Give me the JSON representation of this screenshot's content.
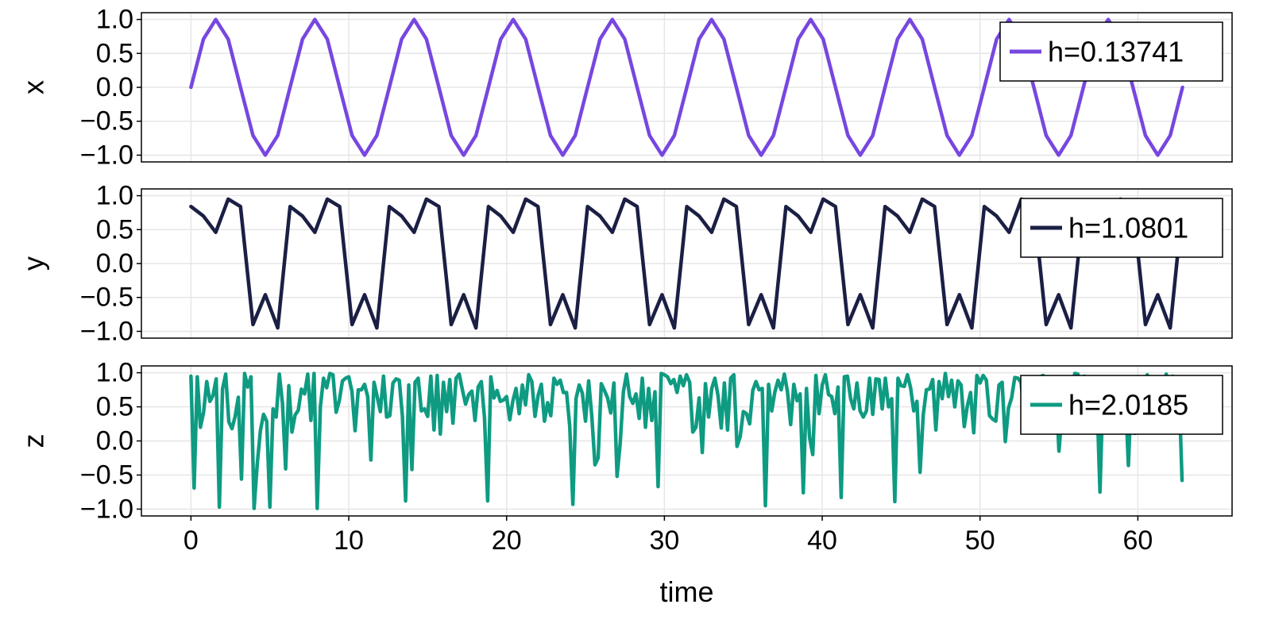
{
  "chart_data": [
    {
      "type": "line",
      "ylabel": "x",
      "xlim": [
        -3.14,
        65.97
      ],
      "ylim": [
        -1.1,
        1.1
      ],
      "yticks": [
        1.0,
        0.5,
        0.0,
        -0.5,
        -1.0
      ],
      "yticklabels": [
        "1.0",
        "0.5",
        "0.0",
        "−0.5",
        "−1.0"
      ],
      "xticks": [
        0,
        10,
        20,
        30,
        40,
        50,
        60
      ],
      "xticklabels": [],
      "grid": true,
      "legend_position": "top-right",
      "series": [
        {
          "name": "h=0.13741",
          "color": "#7747e0",
          "x": [
            0.0,
            0.79,
            1.57,
            2.36,
            3.14,
            3.93,
            4.71,
            5.5,
            6.28,
            7.07,
            7.85,
            8.64,
            9.42,
            10.21,
            11.0,
            11.78,
            12.57,
            13.35,
            14.14,
            14.92,
            15.71,
            16.49,
            17.28,
            18.06,
            18.85,
            19.63,
            20.42,
            21.21,
            21.99,
            22.78,
            23.56,
            24.35,
            25.13,
            25.92,
            26.7,
            27.49,
            28.27,
            29.06,
            29.85,
            30.63,
            31.42,
            32.2,
            32.99,
            33.77,
            34.56,
            35.34,
            36.13,
            36.91,
            37.7,
            38.48,
            39.27,
            40.06,
            40.84,
            41.63,
            42.41,
            43.2,
            43.98,
            44.77,
            45.55,
            46.34,
            47.12,
            47.91,
            48.69,
            49.48,
            50.27,
            51.05,
            51.84,
            52.62,
            53.41,
            54.19,
            54.98,
            55.76,
            56.55,
            57.33,
            58.12,
            58.9,
            59.69,
            60.48,
            61.26,
            62.05,
            62.83
          ],
          "y": [
            0.0,
            0.71,
            1.0,
            0.71,
            0.0,
            -0.71,
            -1.0,
            -0.71,
            0.0,
            0.71,
            1.0,
            0.71,
            0.0,
            -0.71,
            -1.0,
            -0.71,
            0.0,
            0.71,
            1.0,
            0.71,
            0.0,
            -0.71,
            -1.0,
            -0.71,
            0.0,
            0.71,
            1.0,
            0.71,
            0.0,
            -0.71,
            -1.0,
            -0.71,
            0.0,
            0.71,
            1.0,
            0.71,
            0.0,
            -0.71,
            -1.0,
            -0.71,
            0.0,
            0.71,
            1.0,
            0.71,
            0.0,
            -0.71,
            -1.0,
            -0.71,
            0.0,
            0.71,
            1.0,
            0.71,
            0.0,
            -0.71,
            -1.0,
            -0.71,
            0.0,
            0.71,
            1.0,
            0.71,
            0.0,
            -0.71,
            -1.0,
            -0.71,
            0.0,
            0.71,
            1.0,
            0.71,
            0.0,
            -0.71,
            -1.0,
            -0.71,
            0.0,
            0.71,
            1.0,
            0.71,
            0.0,
            -0.71,
            -1.0,
            -0.71,
            0.0
          ]
        }
      ]
    },
    {
      "type": "line",
      "ylabel": "y",
      "xlim": [
        -3.14,
        65.97
      ],
      "ylim": [
        -1.1,
        1.1
      ],
      "yticks": [
        1.0,
        0.5,
        0.0,
        -0.5,
        -1.0
      ],
      "yticklabels": [
        "1.0",
        "0.5",
        "0.0",
        "−0.5",
        "−1.0"
      ],
      "xticks": [
        0,
        10,
        20,
        30,
        40,
        50,
        60
      ],
      "xticklabels": [],
      "grid": true,
      "legend_position": "top-right",
      "series": [
        {
          "name": "h=1.0801",
          "color": "#1b1f44",
          "x": [
            0.0,
            0.79,
            1.57,
            2.36,
            3.14,
            3.93,
            4.71,
            5.5,
            6.28,
            7.07,
            7.85,
            8.64,
            9.42,
            10.21,
            11.0,
            11.78,
            12.57,
            13.35,
            14.14,
            14.92,
            15.71,
            16.49,
            17.28,
            18.06,
            18.85,
            19.63,
            20.42,
            21.21,
            21.99,
            22.78,
            23.56,
            24.35,
            25.13,
            25.92,
            26.7,
            27.49,
            28.27,
            29.06,
            29.85,
            30.63,
            31.42,
            32.2,
            32.99,
            33.77,
            34.56,
            35.34,
            36.13,
            36.91,
            37.7,
            38.48,
            39.27,
            40.06,
            40.84,
            41.63,
            42.41,
            43.2,
            43.98,
            44.77,
            45.55,
            46.34,
            47.12,
            47.91,
            48.69,
            49.48,
            50.27,
            51.05,
            51.84,
            52.62,
            53.41,
            54.19,
            54.98,
            55.76,
            56.55,
            57.33,
            58.12,
            58.9,
            59.69,
            60.48,
            61.26,
            62.05,
            62.83
          ],
          "y": [
            0.84,
            0.7,
            0.46,
            0.95,
            0.84,
            -0.9,
            -0.46,
            -0.95,
            0.84,
            0.7,
            0.46,
            0.95,
            0.84,
            -0.9,
            -0.46,
            -0.95,
            0.84,
            0.7,
            0.46,
            0.95,
            0.84,
            -0.9,
            -0.46,
            -0.95,
            0.84,
            0.7,
            0.46,
            0.95,
            0.84,
            -0.9,
            -0.46,
            -0.95,
            0.84,
            0.7,
            0.46,
            0.95,
            0.84,
            -0.9,
            -0.46,
            -0.95,
            0.84,
            0.7,
            0.46,
            0.95,
            0.84,
            -0.9,
            -0.46,
            -0.95,
            0.84,
            0.7,
            0.46,
            0.95,
            0.84,
            -0.9,
            -0.46,
            -0.95,
            0.84,
            0.7,
            0.46,
            0.95,
            0.84,
            -0.9,
            -0.46,
            -0.95,
            0.84,
            0.7,
            0.46,
            0.95,
            0.84,
            -0.9,
            -0.46,
            -0.95,
            0.84,
            0.7,
            0.46,
            0.95,
            0.84,
            -0.9,
            -0.46,
            -0.95,
            0.84
          ]
        }
      ]
    },
    {
      "type": "line",
      "ylabel": "z",
      "xlabel": "time",
      "xlim": [
        -3.14,
        65.97
      ],
      "ylim": [
        -1.1,
        1.1
      ],
      "yticks": [
        1.0,
        0.5,
        0.0,
        -0.5,
        -1.0
      ],
      "yticklabels": [
        "1.0",
        "0.5",
        "0.0",
        "−0.5",
        "−1.0"
      ],
      "xticks": [
        0,
        10,
        20,
        30,
        40,
        50,
        60
      ],
      "xticklabels": [
        "0",
        "10",
        "20",
        "30",
        "40",
        "50",
        "60"
      ],
      "grid": true,
      "legend_position": "top-right",
      "series": [
        {
          "name": "h=2.0185",
          "color": "#0e9b82",
          "x": [
            0.0,
            0.2,
            0.4,
            0.6,
            0.8,
            1.0,
            1.2,
            1.4,
            1.6,
            1.8,
            2.0,
            2.2,
            2.4,
            2.6,
            2.8,
            3.0,
            3.2,
            3.4,
            3.6,
            3.8,
            4.0,
            4.2,
            4.4,
            4.6,
            4.8,
            5.0,
            5.2,
            5.4,
            5.6,
            5.8,
            6.0,
            6.2,
            6.4,
            6.6,
            6.8,
            7.0,
            7.2,
            7.4,
            7.6,
            7.8,
            8.0,
            8.2,
            8.4,
            8.6,
            8.8,
            9.0,
            9.2,
            9.4,
            9.6,
            9.8,
            10.0,
            10.2,
            10.4,
            10.6,
            10.8,
            11.0,
            11.2,
            11.4,
            11.6,
            11.8,
            12.0,
            12.2,
            12.4,
            12.6,
            12.8,
            13.0,
            13.2,
            13.4,
            13.6,
            13.8,
            14.0,
            14.2,
            14.4,
            14.6,
            14.8,
            15.0,
            15.2,
            15.4,
            15.6,
            15.8,
            16.0,
            16.2,
            16.4,
            16.6,
            16.8,
            17.0,
            17.2,
            17.4,
            17.6,
            17.8,
            18.0,
            18.2,
            18.4,
            18.6,
            18.8,
            19.0,
            19.2,
            19.4,
            19.6,
            19.8,
            20.0,
            20.2,
            20.4,
            20.6,
            20.8,
            21.0,
            21.2,
            21.4,
            21.6,
            21.8,
            22.0,
            22.2,
            22.4,
            22.6,
            22.8,
            23.0,
            23.2,
            23.4,
            23.6,
            23.8,
            24.0,
            24.2,
            24.4,
            24.6,
            24.8,
            25.0,
            25.2,
            25.4,
            25.6,
            25.8,
            26.0,
            26.2,
            26.4,
            26.6,
            26.8,
            27.0,
            27.2,
            27.4,
            27.6,
            27.8,
            28.0,
            28.2,
            28.4,
            28.6,
            28.8,
            29.0,
            29.2,
            29.4,
            29.6,
            29.8,
            30.0,
            30.2,
            30.4,
            30.6,
            30.8,
            31.0,
            31.2,
            31.4,
            31.6,
            31.8,
            32.0,
            32.2,
            32.4,
            32.6,
            32.8,
            33.0,
            33.2,
            33.4,
            33.6,
            33.8,
            34.0,
            34.2,
            34.4,
            34.6,
            34.8,
            35.0,
            35.2,
            35.4,
            35.6,
            35.8,
            36.0,
            36.2,
            36.4,
            36.6,
            36.8,
            37.0,
            37.2,
            37.4,
            37.6,
            37.8,
            38.0,
            38.2,
            38.4,
            38.6,
            38.8,
            39.0,
            39.2,
            39.4,
            39.6,
            39.8,
            40.0,
            40.2,
            40.4,
            40.6,
            40.8,
            41.0,
            41.2,
            41.4,
            41.6,
            41.8,
            42.0,
            42.2,
            42.4,
            42.6,
            42.8,
            43.0,
            43.2,
            43.4,
            43.6,
            43.8,
            44.0,
            44.2,
            44.4,
            44.6,
            44.8,
            45.0,
            45.2,
            45.4,
            45.6,
            45.8,
            46.0,
            46.2,
            46.4,
            46.6,
            46.8,
            47.0,
            47.2,
            47.4,
            47.6,
            47.8,
            48.0,
            48.2,
            48.4,
            48.6,
            48.8,
            49.0,
            49.2,
            49.4,
            49.6,
            49.8,
            50.0,
            50.2,
            50.4,
            50.6,
            50.8,
            51.0,
            51.2,
            51.4,
            51.6,
            51.8,
            52.0,
            52.2,
            52.4,
            52.6,
            52.8,
            53.0,
            53.2,
            53.4,
            53.6,
            53.8,
            54.0,
            54.2,
            54.4,
            54.6,
            54.8,
            55.0,
            55.2,
            55.4,
            55.6,
            55.8,
            56.0,
            56.2,
            56.4,
            56.6,
            56.8,
            57.0,
            57.2,
            57.4,
            57.6,
            57.8,
            58.0,
            58.2,
            58.4,
            58.6,
            58.8,
            59.0,
            59.2,
            59.4,
            59.6,
            59.8,
            60.0,
            60.2,
            60.4,
            60.6,
            60.8,
            61.0,
            61.2,
            61.4,
            61.6,
            61.8,
            62.0,
            62.2,
            62.4,
            62.6,
            62.8
          ],
          "y": [
            0.95,
            -0.69,
            0.94,
            0.2,
            0.42,
            0.87,
            0.58,
            0.67,
            0.91,
            -0.97,
            0.76,
            0.98,
            0.28,
            0.18,
            0.36,
            0.64,
            -0.56,
            0.99,
            0.79,
            0.94,
            -0.99,
            -0.34,
            0.15,
            0.39,
            0.29,
            -0.97,
            0.47,
            0.35,
            0.98,
            0.55,
            -0.41,
            0.81,
            0.13,
            0.38,
            0.45,
            0.76,
            0.69,
            0.98,
            0.3,
            0.99,
            -0.99,
            0.5,
            0.92,
            0.78,
            0.99,
            0.97,
            0.42,
            0.59,
            0.88,
            0.92,
            0.94,
            0.73,
            0.15,
            0.75,
            0.75,
            0.83,
            0.65,
            -0.28,
            0.86,
            0.65,
            0.43,
            0.95,
            0.35,
            0.37,
            0.85,
            0.91,
            0.89,
            0.36,
            -0.88,
            0.82,
            -0.42,
            0.86,
            0.92,
            0.44,
            0.47,
            0.36,
            0.95,
            0.16,
            0.96,
            0.1,
            0.86,
            0.43,
            0.9,
            0.26,
            0.92,
            0.98,
            0.75,
            0.54,
            0.68,
            0.73,
            0.3,
            0.79,
            0.87,
            0.34,
            -0.88,
            0.94,
            0.63,
            0.74,
            0.58,
            0.6,
            0.65,
            0.31,
            0.59,
            0.77,
            0.4,
            0.82,
            0.53,
            0.97,
            0.87,
            0.36,
            0.67,
            0.83,
            0.29,
            0.56,
            0.37,
            0.92,
            0.83,
            0.89,
            0.71,
            0.71,
            0.22,
            -0.93,
            0.62,
            0.82,
            0.7,
            0.29,
            0.88,
            0.36,
            -0.35,
            -0.25,
            0.84,
            0.74,
            0.63,
            0.41,
            0.85,
            -0.52,
            -0.03,
            0.72,
            0.98,
            0.65,
            0.55,
            0.69,
            0.33,
            0.92,
            0.2,
            0.77,
            0.3,
            0.72,
            -0.67,
            0.99,
            0.97,
            0.94,
            0.84,
            0.9,
            0.71,
            0.95,
            0.81,
            0.97,
            0.86,
            0.13,
            0.2,
            0.63,
            -0.17,
            0.84,
            0.35,
            0.77,
            0.92,
            0.66,
            0.19,
            0.85,
            0.16,
            0.92,
            0.97,
            -0.08,
            0.06,
            0.43,
            0.4,
            0.25,
            0.74,
            0.87,
            0.75,
            0.77,
            -0.95,
            0.83,
            0.44,
            0.72,
            0.89,
            0.75,
            0.98,
            0.72,
            0.24,
            0.83,
            0.59,
            0.69,
            -0.76,
            0.77,
            0.05,
            -0.2,
            0.96,
            0.4,
            0.82,
            0.97,
            0.68,
            0.65,
            0.4,
            0.79,
            -0.83,
            0.94,
            0.95,
            0.62,
            0.47,
            0.85,
            0.44,
            0.35,
            0.44,
            0.92,
            0.39,
            0.91,
            0.9,
            0.47,
            0.92,
            0.5,
            0.62,
            -0.89,
            0.92,
            0.81,
            0.8,
            0.97,
            0.78,
            0.44,
            0.58,
            -0.46,
            0.38,
            0.75,
            0.76,
            0.9,
            0.16,
            0.87,
            0.62,
            0.99,
            0.65,
            0.89,
            0.5,
            0.88,
            0.82,
            0.21,
            0.52,
            0.71,
            0.12,
            0.96,
            0.85,
            0.96,
            0.89,
            0.37,
            0.32,
            0.29,
            0.82,
            0.86,
            -0.01,
            0.48,
            0.63,
            0.93,
            0.92,
            0.86,
            0.4,
            0.74,
            0.45,
            0.42,
            0.32,
            0.94,
            0.96,
            0.38,
            0.88,
            0.85,
            0.82,
            -0.15,
            0.44,
            0.19,
            0.93,
            0.52,
            0.99,
            0.98,
            0.37,
            0.95,
            0.75,
            0.87,
            0.26,
            0.68,
            -0.75,
            0.82,
            0.86,
            0.17,
            0.85,
            0.88,
            0.64,
            0.36,
            0.75,
            -0.36,
            0.78,
            0.11,
            0.74,
            0.81,
            0.89,
            0.97,
            0.83,
            0.89,
            0.62,
            0.84,
            0.78,
            0.98,
            0.51,
            0.95,
            0.33,
            0.83,
            -0.58
          ]
        }
      ]
    }
  ]
}
